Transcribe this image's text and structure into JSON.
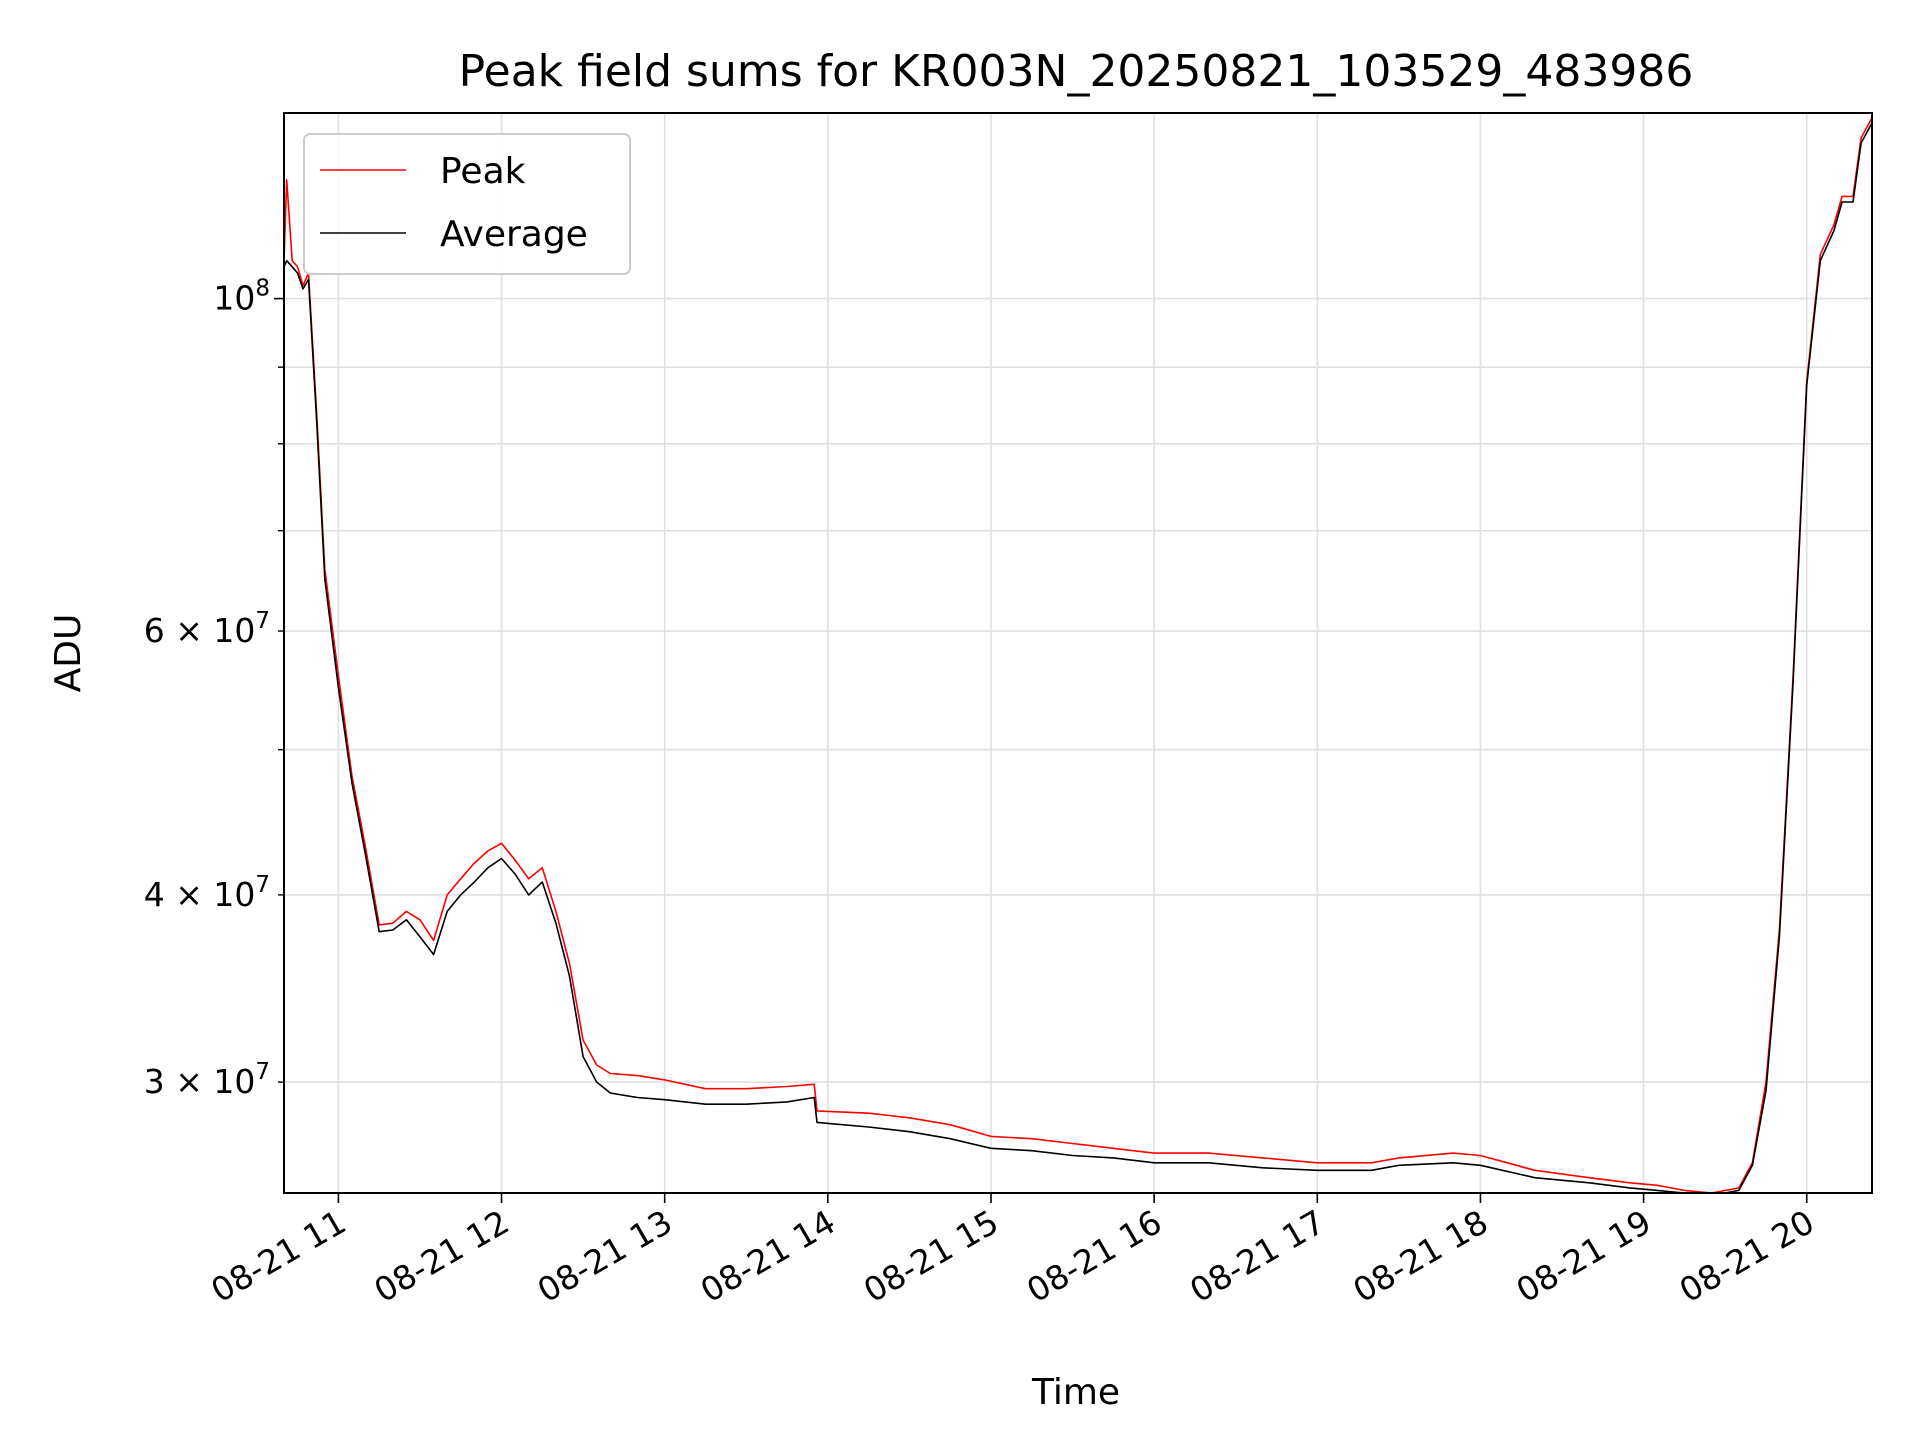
{
  "chart_data": {
    "type": "line",
    "title": "Peak field sums for KR003N_20250821_103529_483986",
    "xlabel": "Time",
    "ylabel": "ADU",
    "yscale": "log",
    "grid": true,
    "legend_position": "upper left",
    "xlim": [
      "2025-08-21 10:40",
      "2025-08-21 20:24"
    ],
    "ylim": [
      25300000,
      133000000
    ],
    "x_ticks": [
      {
        "value": "2025-08-21 11:00",
        "label": "08-21 11"
      },
      {
        "value": "2025-08-21 12:00",
        "label": "08-21 12"
      },
      {
        "value": "2025-08-21 13:00",
        "label": "08-21 13"
      },
      {
        "value": "2025-08-21 14:00",
        "label": "08-21 14"
      },
      {
        "value": "2025-08-21 15:00",
        "label": "08-21 15"
      },
      {
        "value": "2025-08-21 16:00",
        "label": "08-21 16"
      },
      {
        "value": "2025-08-21 17:00",
        "label": "08-21 17"
      },
      {
        "value": "2025-08-21 18:00",
        "label": "08-21 18"
      },
      {
        "value": "2025-08-21 19:00",
        "label": "08-21 19"
      },
      {
        "value": "2025-08-21 20:00",
        "label": "08-21 20"
      }
    ],
    "y_major_ticks": [
      {
        "value": 100000000,
        "base": "10",
        "exp": "8"
      }
    ],
    "y_minor_ticks": [
      {
        "value": 30000000,
        "mantissa": "3",
        "exp": "7"
      },
      {
        "value": 40000000,
        "mantissa": "4",
        "exp": "7"
      },
      {
        "value": 50000000,
        "mantissa": "",
        "exp": ""
      },
      {
        "value": 60000000,
        "mantissa": "6",
        "exp": "7"
      },
      {
        "value": 70000000,
        "mantissa": "",
        "exp": ""
      },
      {
        "value": 80000000,
        "mantissa": "",
        "exp": ""
      },
      {
        "value": 90000000,
        "mantissa": "",
        "exp": ""
      }
    ],
    "x": [
      "2025-08-21 10:40",
      "2025-08-21 10:41",
      "2025-08-21 10:43",
      "2025-08-21 10:45",
      "2025-08-21 10:47",
      "2025-08-21 10:49",
      "2025-08-21 10:52",
      "2025-08-21 10:55",
      "2025-08-21 11:00",
      "2025-08-21 11:05",
      "2025-08-21 11:10",
      "2025-08-21 11:15",
      "2025-08-21 11:20",
      "2025-08-21 11:25",
      "2025-08-21 11:30",
      "2025-08-21 11:35",
      "2025-08-21 11:40",
      "2025-08-21 11:45",
      "2025-08-21 11:50",
      "2025-08-21 11:55",
      "2025-08-21 12:00",
      "2025-08-21 12:05",
      "2025-08-21 12:10",
      "2025-08-21 12:15",
      "2025-08-21 12:20",
      "2025-08-21 12:25",
      "2025-08-21 12:30",
      "2025-08-21 12:35",
      "2025-08-21 12:40",
      "2025-08-21 12:50",
      "2025-08-21 13:00",
      "2025-08-21 13:15",
      "2025-08-21 13:30",
      "2025-08-21 13:45",
      "2025-08-21 13:55",
      "2025-08-21 13:56",
      "2025-08-21 14:15",
      "2025-08-21 14:30",
      "2025-08-21 14:45",
      "2025-08-21 15:00",
      "2025-08-21 15:15",
      "2025-08-21 15:30",
      "2025-08-21 15:45",
      "2025-08-21 16:00",
      "2025-08-21 16:20",
      "2025-08-21 16:40",
      "2025-08-21 17:00",
      "2025-08-21 17:20",
      "2025-08-21 17:30",
      "2025-08-21 17:50",
      "2025-08-21 18:00",
      "2025-08-21 18:20",
      "2025-08-21 18:40",
      "2025-08-21 18:55",
      "2025-08-21 19:05",
      "2025-08-21 19:15",
      "2025-08-21 19:25",
      "2025-08-21 19:35",
      "2025-08-21 19:40",
      "2025-08-21 19:45",
      "2025-08-21 19:50",
      "2025-08-21 19:55",
      "2025-08-21 20:00",
      "2025-08-21 20:05",
      "2025-08-21 20:10",
      "2025-08-21 20:13",
      "2025-08-21 20:17",
      "2025-08-21 20:20",
      "2025-08-21 20:24"
    ],
    "series": [
      {
        "name": "Peak",
        "color": "#ff0000",
        "values": [
          106000000,
          120000000,
          106000000,
          105000000,
          102000000,
          104000000,
          84000000,
          66000000,
          56000000,
          48000000,
          43000000,
          38200000,
          38300000,
          39000000,
          38500000,
          37300000,
          40000000,
          41000000,
          42000000,
          42800000,
          43300000,
          42200000,
          41000000,
          41700000,
          39000000,
          36000000,
          32000000,
          30800000,
          30400000,
          30300000,
          30100000,
          29700000,
          29700000,
          29800000,
          29900000,
          28700000,
          28600000,
          28400000,
          28100000,
          27600000,
          27500000,
          27300000,
          27100000,
          26900000,
          26900000,
          26700000,
          26500000,
          26500000,
          26700000,
          26900000,
          26800000,
          26200000,
          25900000,
          25700000,
          25600000,
          25400000,
          25300000,
          25500000,
          26500000,
          30000000,
          38000000,
          56000000,
          88000000,
          107000000,
          112000000,
          117000000,
          117000000,
          128000000,
          132000000
        ]
      },
      {
        "name": "Average",
        "color": "#000000",
        "values": [
          105000000,
          106000000,
          105000000,
          104000000,
          101500000,
          103000000,
          83000000,
          65000000,
          55000000,
          47500000,
          42500000,
          37800000,
          37900000,
          38500000,
          37500000,
          36500000,
          39000000,
          40000000,
          40800000,
          41700000,
          42300000,
          41300000,
          40000000,
          40800000,
          38300000,
          35300000,
          31200000,
          30000000,
          29500000,
          29300000,
          29200000,
          29000000,
          29000000,
          29100000,
          29300000,
          28200000,
          28000000,
          27800000,
          27500000,
          27100000,
          27000000,
          26800000,
          26700000,
          26500000,
          26500000,
          26300000,
          26200000,
          26200000,
          26400000,
          26500000,
          26400000,
          25900000,
          25700000,
          25500000,
          25400000,
          25300000,
          25200000,
          25400000,
          26400000,
          29600000,
          37600000,
          55500000,
          87500000,
          106000000,
          111000000,
          116000000,
          116000000,
          127000000,
          131000000
        ]
      }
    ]
  }
}
